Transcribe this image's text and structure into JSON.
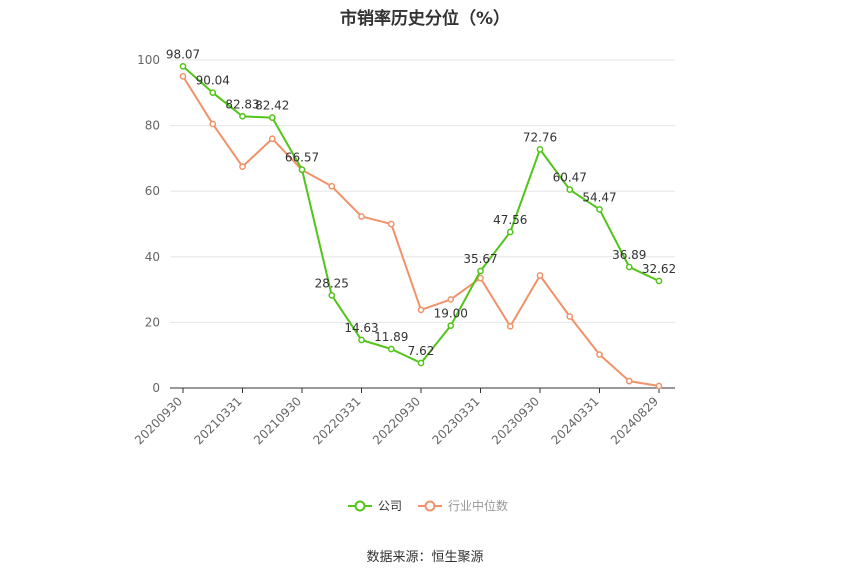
{
  "title": "市销率历史分位（%）",
  "source": "数据来源：恒生聚源",
  "colors": {
    "company": "#52c41a",
    "industry": "#f0926a",
    "grid": "#e6e6e6",
    "axis": "#333333"
  },
  "chart_data": {
    "type": "line",
    "title": "市销率历史分位（%）",
    "xlabel": "",
    "ylabel": "",
    "ylim": [
      0,
      100
    ],
    "yticks": [
      0,
      20,
      40,
      60,
      80,
      100
    ],
    "grid": true,
    "legend_position": "bottom",
    "x": [
      "20200930",
      "20201231",
      "20210331",
      "20210630",
      "20210930",
      "20211231",
      "20220331",
      "20220630",
      "20220930",
      "20221231",
      "20230331",
      "20230630",
      "20230930",
      "20231231",
      "20240331",
      "20240630",
      "20240829"
    ],
    "x_tick_labels": [
      "20200930",
      "20210331",
      "20210930",
      "20220331",
      "20220930",
      "20230331",
      "20230930",
      "20240331",
      "20240829"
    ],
    "x_tick_indices": [
      0,
      2,
      4,
      6,
      8,
      10,
      12,
      14,
      16
    ],
    "series": [
      {
        "name": "公司",
        "values": [
          98.07,
          90.04,
          82.83,
          82.42,
          66.57,
          28.25,
          14.63,
          11.89,
          7.62,
          19.0,
          35.67,
          47.56,
          72.76,
          60.47,
          54.47,
          36.89,
          32.62
        ],
        "labels": [
          "98.07",
          "90.04",
          "82.83",
          "82.42",
          "66.57",
          "28.25",
          "14.63",
          "11.89",
          "7.62",
          "19.00",
          "35.67",
          "47.56",
          "72.76",
          "60.47",
          "54.47",
          "36.89",
          "32.62"
        ]
      },
      {
        "name": "行业中位数",
        "values": [
          95.0,
          80.5,
          67.5,
          76.0,
          66.5,
          61.5,
          52.3,
          50.0,
          23.8,
          27.0,
          33.5,
          18.8,
          34.3,
          21.8,
          10.2,
          2.1,
          0.6
        ]
      }
    ]
  }
}
